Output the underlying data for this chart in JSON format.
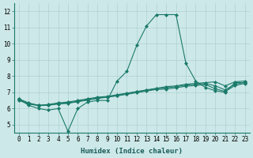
{
  "title": "",
  "xlabel": "Humidex (Indice chaleur)",
  "ylabel": "",
  "xlim": [
    -0.5,
    23.5
  ],
  "ylim": [
    4.5,
    12.5
  ],
  "yticks": [
    5,
    6,
    7,
    8,
    9,
    10,
    11,
    12
  ],
  "xticks": [
    0,
    1,
    2,
    3,
    4,
    5,
    6,
    7,
    8,
    9,
    10,
    11,
    12,
    13,
    14,
    15,
    16,
    17,
    18,
    19,
    20,
    21,
    22,
    23
  ],
  "background_color": "#cde8e8",
  "grid_color": "#aacccc",
  "line_color": "#1a7a6a",
  "lines": [
    [
      6.6,
      6.2,
      6.0,
      5.9,
      6.0,
      4.6,
      6.0,
      6.4,
      6.5,
      6.5,
      7.7,
      8.3,
      9.9,
      11.1,
      11.8,
      11.8,
      11.8,
      8.8,
      7.7,
      7.3,
      7.1,
      7.0,
      7.6,
      7.6
    ],
    [
      6.6,
      6.35,
      6.2,
      6.25,
      6.35,
      6.4,
      6.5,
      6.6,
      6.7,
      6.75,
      6.85,
      6.95,
      7.05,
      7.15,
      7.25,
      7.35,
      7.4,
      7.5,
      7.55,
      7.6,
      7.65,
      7.4,
      7.65,
      7.7
    ],
    [
      6.55,
      6.3,
      6.2,
      6.22,
      6.3,
      6.35,
      6.45,
      6.55,
      6.65,
      6.72,
      6.82,
      6.92,
      7.02,
      7.12,
      7.22,
      7.28,
      7.35,
      7.45,
      7.5,
      7.55,
      7.4,
      7.15,
      7.5,
      7.62
    ],
    [
      6.5,
      6.28,
      6.18,
      6.2,
      6.28,
      6.32,
      6.42,
      6.52,
      6.62,
      6.7,
      6.78,
      6.88,
      6.98,
      7.08,
      7.18,
      7.2,
      7.28,
      7.38,
      7.42,
      7.48,
      7.22,
      7.05,
      7.42,
      7.55
    ]
  ],
  "marker": "D",
  "markersize": 2,
  "linewidth": 0.8,
  "tick_fontsize": 5.5,
  "xlabel_fontsize": 6.5
}
